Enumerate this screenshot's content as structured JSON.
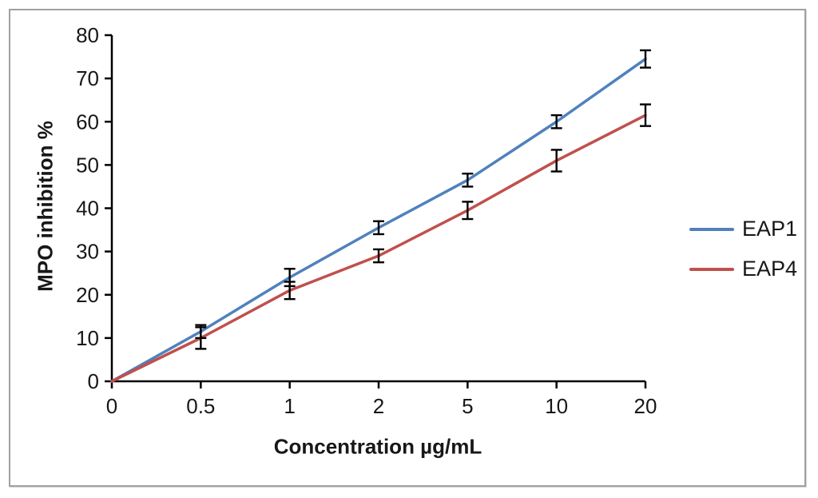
{
  "frame": {
    "border_color": "#a0a0a0",
    "background": "#ffffff"
  },
  "chart_data": {
    "type": "line",
    "title": "",
    "xlabel": "Concentration µg/mL",
    "ylabel": "MPO inhibition %",
    "categories": [
      "0",
      "0.5",
      "1",
      "2",
      "5",
      "10",
      "20"
    ],
    "x_scale": "categorical-equal-spacing",
    "ylim": [
      0,
      80
    ],
    "y_ticks": [
      0,
      10,
      20,
      30,
      40,
      50,
      60,
      70,
      80
    ],
    "grid": false,
    "legend_position": "center-right",
    "axis_color": "#000000",
    "error_bar_color": "#000000",
    "series": [
      {
        "name": "EAP1",
        "color": "#4F81BD",
        "values": [
          0,
          11.5,
          24,
          35.5,
          46.5,
          60,
          74.5
        ],
        "errors": [
          0,
          1.5,
          2,
          1.5,
          1.5,
          1.5,
          2
        ]
      },
      {
        "name": "EAP4",
        "color": "#C0504D",
        "values": [
          0,
          10,
          21,
          29,
          39.5,
          51,
          61.5
        ],
        "errors": [
          0,
          2.5,
          2,
          1.5,
          2,
          2.5,
          2.5
        ]
      }
    ]
  }
}
